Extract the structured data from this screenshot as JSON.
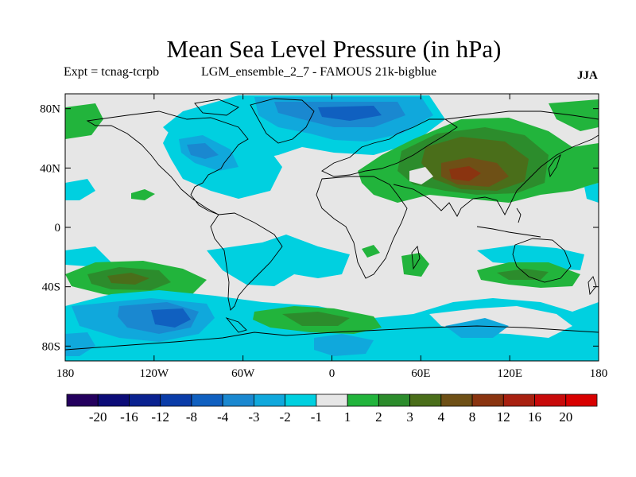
{
  "header": {
    "title": "Mean Sea Level Pressure (in hPa)",
    "experiment": "Expt = tcnag-tcrpb",
    "run": "LGM_ensemble_2_7 - FAMOUS 21k-bigblue",
    "season": "JJA"
  },
  "axes": {
    "lat_labels": [
      "80N",
      "40N",
      "0",
      "40S",
      "80S"
    ],
    "lat_values": [
      80,
      40,
      0,
      -40,
      -80
    ],
    "lon_labels": [
      "180",
      "120W",
      "60W",
      "0",
      "60E",
      "120E",
      "180"
    ],
    "lon_values": [
      -180,
      -120,
      -60,
      0,
      60,
      120,
      180
    ]
  },
  "colorbar": {
    "labels": [
      "-20",
      "-16",
      "-12",
      "-8",
      "-4",
      "-3",
      "-2",
      "-1",
      "1",
      "2",
      "3",
      "4",
      "8",
      "12",
      "16",
      "20"
    ],
    "colors": [
      "#24005e",
      "#0c0c78",
      "#0a2290",
      "#0a3ca8",
      "#1060c0",
      "#1a88d0",
      "#10a8dc",
      "#00d0e0",
      "#e6e6e6",
      "#22b43c",
      "#2c8c2c",
      "#4a6e1a",
      "#6e5016",
      "#8a3410",
      "#a82010",
      "#c80a0a",
      "#d80000"
    ]
  },
  "colors": {
    "neutral": "#e6e6e6",
    "cyan": "#00d0e0",
    "blue_light": "#10a8dc",
    "blue_mid": "#1a88d0",
    "blue_dark": "#1060c0",
    "green": "#22b43c",
    "green_dark": "#2c8c2c",
    "olive": "#4a6e1a",
    "brown": "#6e5016",
    "rust": "#8a3410"
  },
  "icons": [
    "world-coastline-map"
  ]
}
